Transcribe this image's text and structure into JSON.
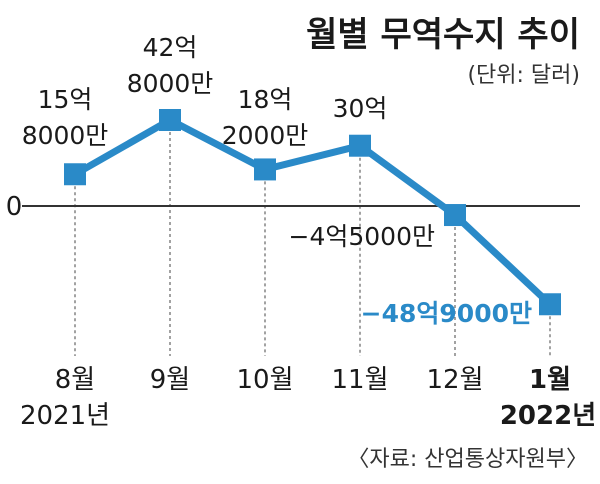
{
  "chart_data": {
    "type": "line",
    "title": "월별 무역수지 추이",
    "unit": "(단위: 달러)",
    "categories": [
      "8월",
      "9월",
      "10월",
      "11월",
      "12월",
      "1월"
    ],
    "year_labels": [
      "2021년",
      "",
      "",
      "",
      "",
      "2022년"
    ],
    "values": [
      1580000000,
      4280000000,
      1820000000,
      3000000000,
      -450000000,
      -4890000000
    ],
    "value_labels": [
      [
        "15억",
        "8000만"
      ],
      [
        "42억",
        "8000만"
      ],
      [
        "18억",
        "2000만"
      ],
      [
        "30억"
      ],
      [
        "−4억5000만"
      ],
      [
        "−48억9000만"
      ]
    ],
    "zero_label": "0",
    "source": "〈자료: 산업통상자원부〉",
    "colors": {
      "line": "#2a8ac8",
      "marker": "#2a8ac8",
      "highlight": "#2a8ac8"
    },
    "highlight_index": 5,
    "grid": "dashed verticals at each month"
  }
}
